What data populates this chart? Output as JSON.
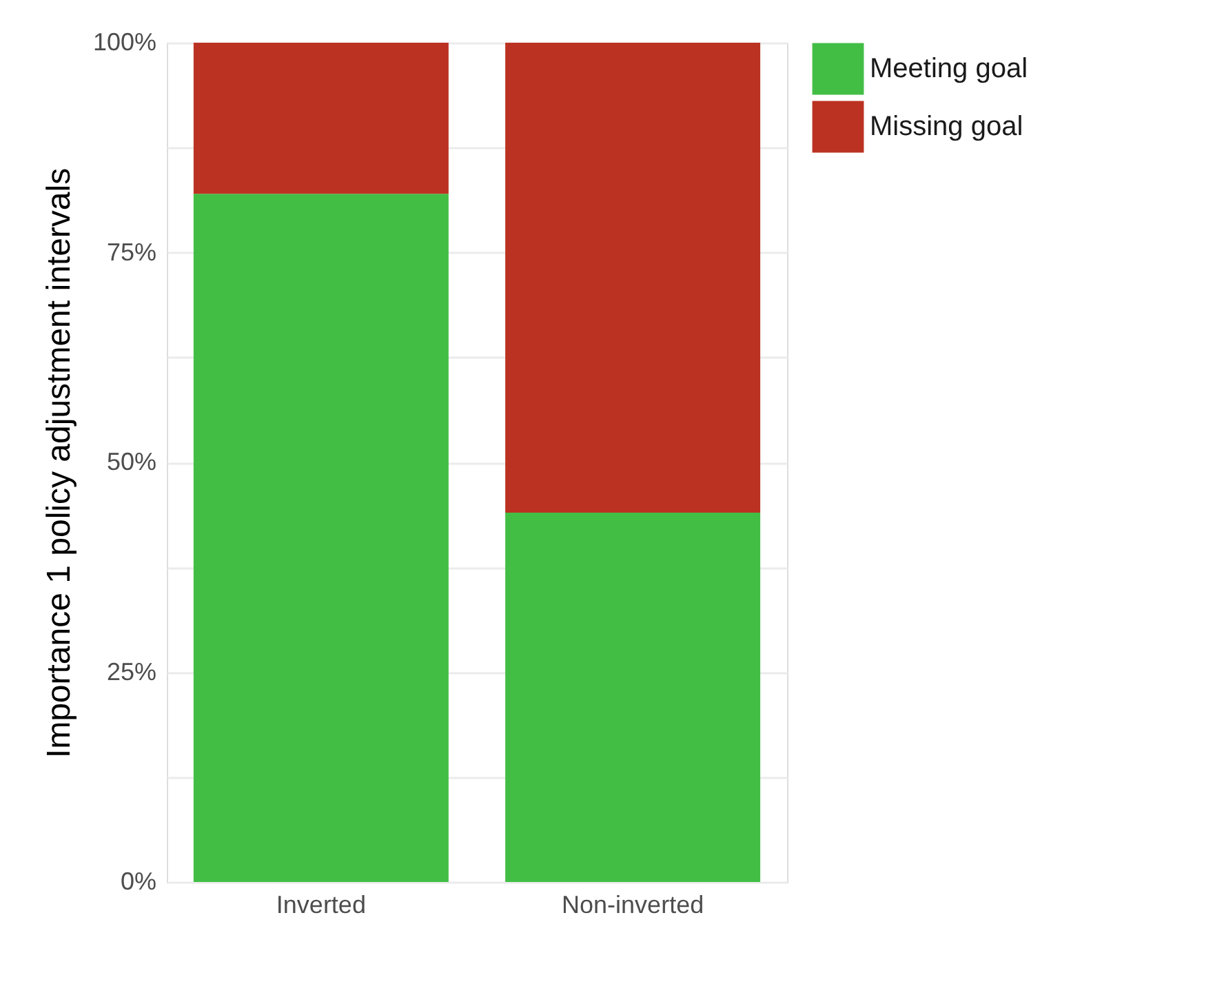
{
  "chart_data": {
    "type": "bar",
    "stacked": true,
    "ylabel": "Importance 1 policy adjustment intervals",
    "categories": [
      "Inverted",
      "Non-inverted"
    ],
    "series": [
      {
        "name": "Meeting goal",
        "color": "#42be45",
        "values": [
          82,
          44
        ]
      },
      {
        "name": "Missing goal",
        "color": "#bb3222",
        "values": [
          18,
          56
        ]
      }
    ],
    "ylim": [
      0,
      100
    ],
    "yticks": [
      {
        "value": 0,
        "label": "0%"
      },
      {
        "value": 12.5,
        "label": null
      },
      {
        "value": 25,
        "label": "25%"
      },
      {
        "value": 37.5,
        "label": null
      },
      {
        "value": 50,
        "label": "50%"
      },
      {
        "value": 62.5,
        "label": null
      },
      {
        "value": 75,
        "label": "75%"
      },
      {
        "value": 87.5,
        "label": null
      },
      {
        "value": 100,
        "label": "100%"
      }
    ],
    "grid": "y",
    "legend": "right"
  }
}
